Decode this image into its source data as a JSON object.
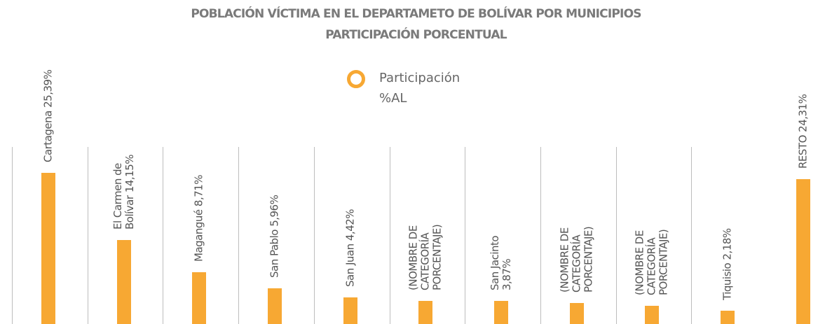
{
  "chart_data": {
    "type": "bar",
    "title": "POBLACIÓN VÍCTIMA EN EL DEPARTAMETO DE BOLÍVAR POR MUNICIPIOS",
    "subtitle": "PARTICIPACIÓN PORCENTUAL",
    "categories": [
      "Cartagena",
      "El Carmen de Bolívar",
      "Magangué",
      "San Pablo",
      "San Juan",
      "(NOMBRE DE CATEGORÍA PORCENTAJE)",
      "San Jacinto",
      "(NOMBRE DE CATEGORÍA PORCENTAJE)",
      "(NOMBRE DE CATEGORÍA PORCENTAJE)",
      "Tiquisio",
      "RESTO"
    ],
    "series": [
      {
        "name": "Participación %AL",
        "color": "#f7a833",
        "values": [
          25.39,
          14.15,
          8.71,
          5.96,
          4.42,
          3.9,
          3.87,
          3.5,
          3.0,
          2.18,
          24.31
        ],
        "value_labels": [
          "25,39%",
          "14,15%",
          "8,71%",
          "5,96%",
          "4,42%",
          null,
          "3,87%",
          null,
          null,
          "2,18%",
          "24,31%"
        ]
      }
    ],
    "legend": "top"
  }
}
